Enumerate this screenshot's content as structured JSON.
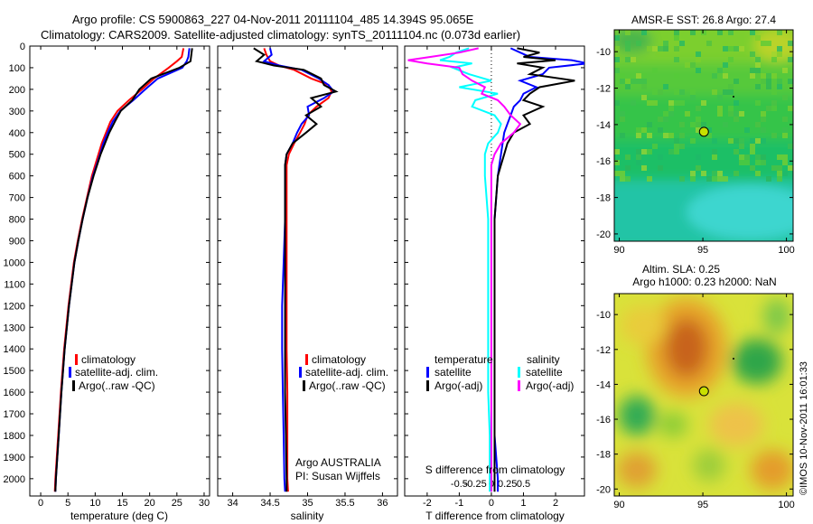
{
  "title": {
    "line1": "Argo profile: CS 5900863_227 04-Nov-2011 20111104_485 14.394S 95.065E",
    "line2": "Climatology: CARS2009. Satellite-adjusted climatology: synTS_20111104.nc (0.073d earlier)"
  },
  "colors": {
    "climatology": "#ff0000",
    "satellite": "#0000ff",
    "argo": "#000000",
    "argo_adj_salinity": "#ff00ff",
    "satellite_salinity": "#00ffff"
  },
  "chart_data": [
    {
      "type": "line",
      "panel": "temperature",
      "xlabel": "temperature (deg C)",
      "ylabel": "",
      "xlim": [
        -2,
        31
      ],
      "ylim": [
        2080,
        0
      ],
      "xticks": [
        "0",
        "5",
        "10",
        "15",
        "20",
        "25",
        "30"
      ],
      "yticks": [
        "0",
        "100",
        "200",
        "300",
        "400",
        "500",
        "600",
        "700",
        "800",
        "900",
        "1000",
        "1100",
        "1200",
        "1300",
        "1400",
        "1500",
        "1600",
        "1700",
        "1800",
        "1900",
        "2000"
      ],
      "legend": [
        "climatology",
        "satellite-adj. clim.",
        "Argo(..raw -QC)"
      ],
      "depth": [
        10,
        50,
        70,
        100,
        150,
        200,
        250,
        300,
        350,
        400,
        450,
        500,
        600,
        700,
        800,
        900,
        1000,
        1200,
        1400,
        1600,
        1800,
        2000,
        2060
      ],
      "series": [
        {
          "name": "climatology",
          "values": [
            26.2,
            25.9,
            25.0,
            23.5,
            20.8,
            18.6,
            16.2,
            14.1,
            12.8,
            12.0,
            11.2,
            10.6,
            9.4,
            8.5,
            7.6,
            6.8,
            6.1,
            5.1,
            4.3,
            3.7,
            3.2,
            2.7,
            2.6
          ]
        },
        {
          "name": "satellite-adj. clim.",
          "values": [
            27.3,
            27.1,
            26.8,
            26.0,
            21.5,
            19.2,
            17.0,
            14.6,
            13.2,
            12.3,
            11.5,
            10.9,
            9.6,
            8.6,
            7.7,
            6.9,
            6.2,
            5.2,
            4.4,
            3.8,
            3.3,
            2.8,
            2.7
          ]
        },
        {
          "name": "Argo(..raw -QC)",
          "values": [
            27.8,
            27.6,
            27.5,
            25.5,
            20.3,
            18.1,
            16.8,
            14.7,
            13.6,
            12.6,
            11.8,
            11.0,
            9.7,
            8.6,
            7.7,
            6.9,
            6.2,
            5.2,
            4.4,
            3.8,
            3.3,
            2.8,
            2.7
          ]
        }
      ]
    },
    {
      "type": "line",
      "panel": "salinity",
      "xlabel": "salinity",
      "xlim": [
        33.8,
        36.2
      ],
      "ylim": [
        2080,
        0
      ],
      "xticks": [
        "34",
        "34.5",
        "35",
        "35.5",
        "36"
      ],
      "legend": [
        "climatology",
        "satellite-adj. clim.",
        "Argo(..raw -QC)"
      ],
      "annotation": [
        "Argo AUSTRALIA",
        "PI: Susan Wijffels"
      ],
      "depth": [
        10,
        40,
        70,
        90,
        110,
        150,
        180,
        210,
        240,
        280,
        320,
        360,
        400,
        450,
        500,
        550,
        600,
        800,
        1000,
        1200,
        1400,
        1600,
        1800,
        2000,
        2060
      ],
      "series": [
        {
          "name": "climatology",
          "values": [
            34.42,
            34.45,
            34.5,
            34.62,
            34.82,
            35.05,
            35.28,
            35.32,
            35.28,
            35.12,
            35.0,
            34.96,
            34.9,
            34.82,
            34.75,
            34.72,
            34.72,
            34.72,
            34.72,
            34.72,
            34.72,
            34.73,
            34.73,
            34.73,
            34.74
          ]
        },
        {
          "name": "satellite-adj. clim.",
          "values": [
            34.5,
            34.52,
            34.42,
            34.62,
            34.92,
            35.15,
            35.28,
            35.35,
            35.22,
            35.0,
            35.02,
            34.92,
            34.86,
            34.8,
            34.72,
            34.7,
            34.7,
            34.7,
            34.68,
            34.66,
            34.66,
            34.67,
            34.68,
            34.69,
            34.7
          ]
        },
        {
          "name": "Argo(..raw -QC)",
          "values": [
            34.28,
            34.42,
            34.32,
            34.55,
            34.95,
            35.18,
            35.22,
            35.38,
            35.05,
            35.18,
            34.98,
            35.12,
            34.98,
            34.8,
            34.72,
            34.7,
            34.7,
            34.7,
            34.7,
            34.7,
            34.7,
            34.7,
            34.71,
            34.72,
            34.72
          ]
        }
      ]
    },
    {
      "type": "line",
      "panel": "differences",
      "xlabel": "T difference from climatology",
      "xlabel_top": "S difference from climatology",
      "xlim": [
        -2.7,
        2.9
      ],
      "ylim": [
        2080,
        0
      ],
      "xticks_T": [
        "-2",
        "-1",
        "0",
        "1",
        "2"
      ],
      "xticks_S": [
        "-0.5",
        "-0.25",
        "0",
        "0.25",
        "0.5"
      ],
      "legend_left_title": "temperature",
      "legend_right_title": "salinity",
      "legend": [
        "satellite",
        "Argo(-adj)",
        "satellite",
        "Argo(-adj)"
      ],
      "depth": [
        10,
        30,
        50,
        65,
        80,
        100,
        130,
        160,
        190,
        220,
        250,
        280,
        320,
        360,
        400,
        450,
        500,
        550,
        600,
        700,
        800,
        1000,
        1200,
        1400,
        1600,
        1800,
        2000,
        2060
      ],
      "series": [
        {
          "name": "temperature satellite",
          "values": [
            0.6,
            0.9,
            1.2,
            2.5,
            3.0,
            1.8,
            1.6,
            0.9,
            1.4,
            1.0,
            0.9,
            0.7,
            0.6,
            0.5,
            0.4,
            0.35,
            0.3,
            0.25,
            0.2,
            0.15,
            0.1,
            0.1,
            0.1,
            0.1,
            0.1,
            0.1,
            0.2,
            0.2
          ]
        },
        {
          "name": "temperature Argo(-adj)",
          "values": [
            0.8,
            1.5,
            1.0,
            2.0,
            0.8,
            1.6,
            1.2,
            2.6,
            1.5,
            1.2,
            1.0,
            1.6,
            1.0,
            1.2,
            0.7,
            0.5,
            0.4,
            0.3,
            0.2,
            0.15,
            0.1,
            0.1,
            0.1,
            0.1,
            0.1,
            0.1,
            0.1,
            0.1
          ]
        },
        {
          "name": "salinity satellite",
          "values": [
            -0.7,
            -1.1,
            -1.3,
            -1.6,
            -0.6,
            -1.2,
            -0.7,
            0.0,
            -1.0,
            0.2,
            -0.5,
            -0.6,
            0.1,
            0.3,
            0.2,
            -0.1,
            -0.2,
            -0.2,
            -0.2,
            -0.15,
            -0.1,
            -0.1,
            -0.1,
            -0.1,
            -0.1,
            -0.05,
            -0.05,
            -0.05
          ]
        },
        {
          "name": "salinity Argo(-adj)",
          "values": [
            -0.4,
            -1.0,
            -1.9,
            -2.6,
            -2.0,
            -1.0,
            -0.9,
            -0.6,
            -0.2,
            -0.3,
            0.2,
            0.4,
            0.6,
            0.9,
            0.7,
            0.3,
            0.1,
            0.0,
            0.0,
            0.0,
            0.0,
            0.0,
            0.0,
            0.0,
            0.0,
            0.0,
            0.0,
            0.0
          ]
        }
      ]
    },
    {
      "type": "heatmap",
      "panel": "sst-map",
      "title": "AMSR-E SST: 26.8 Argo: 27.4",
      "xlim": [
        89.7,
        100.4
      ],
      "ylim": [
        -20.4,
        -8.8
      ],
      "xticks": [
        "90",
        "95",
        "100"
      ],
      "yticks": [
        "-10",
        "-12",
        "-14",
        "-16",
        "-18",
        "-20"
      ],
      "argo_position": {
        "lon": 95.065,
        "lat": -14.394
      }
    },
    {
      "type": "heatmap",
      "panel": "sla-map",
      "title": "Altim. SLA: 0.25",
      "subtitle": "Argo h1000: 0.23 h2000: NaN",
      "xlim": [
        89.7,
        100.4
      ],
      "ylim": [
        -20.4,
        -8.8
      ],
      "xticks": [
        "90",
        "95",
        "100"
      ],
      "yticks": [
        "-10",
        "-12",
        "-14",
        "-16",
        "-18",
        "-20"
      ],
      "argo_position": {
        "lon": 95.065,
        "lat": -14.394
      },
      "side_label": "©IMOS 10-Nov-2011 16:01:33"
    }
  ]
}
